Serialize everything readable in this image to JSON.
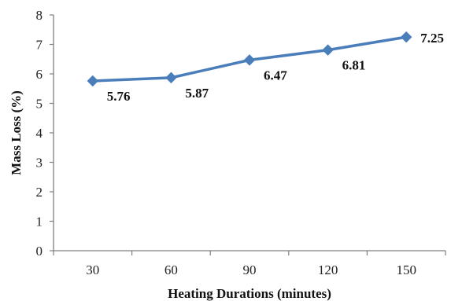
{
  "chart_data": {
    "type": "line",
    "title": "",
    "xlabel": "Heating Durations (minutes)",
    "ylabel": "Mass Loss (%)",
    "x": [
      30,
      60,
      90,
      120,
      150
    ],
    "x_tick_labels": [
      "30",
      "60",
      "90",
      "120",
      "150"
    ],
    "ylim": [
      0,
      8
    ],
    "y_ticks": [
      0,
      1,
      2,
      3,
      4,
      5,
      6,
      7,
      8
    ],
    "grid": false,
    "legend": "none",
    "series": [
      {
        "values": [
          5.76,
          5.87,
          6.47,
          6.81,
          7.25
        ],
        "data_labels": [
          "5.76",
          "5.87",
          "6.47",
          "6.81",
          "7.25"
        ],
        "color": "#4a7ebb",
        "marker": "diamond"
      }
    ]
  }
}
